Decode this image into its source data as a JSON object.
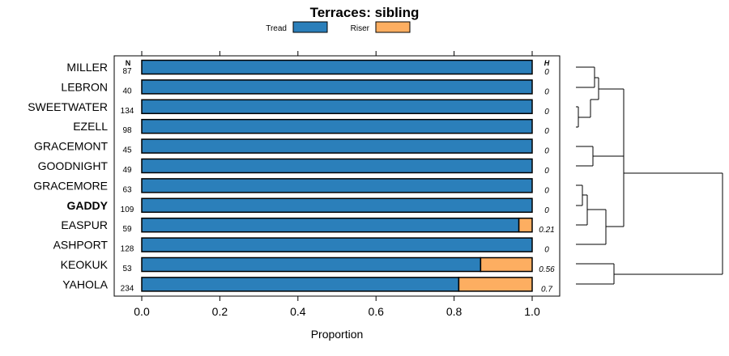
{
  "chart_data": {
    "type": "bar",
    "stacked": true,
    "title": "Terraces: sibling",
    "xlabel": "Proportion",
    "xlim": [
      0,
      1
    ],
    "x_ticks": [
      "0.0",
      "0.2",
      "0.4",
      "0.6",
      "0.8",
      "1.0"
    ],
    "legend_position": "top",
    "n_header": "N",
    "h_header": "H",
    "series": [
      {
        "name": "Tread",
        "color": "#2b7fba"
      },
      {
        "name": "Riser",
        "color": "#fdae61"
      }
    ],
    "rows": [
      {
        "label": "MILLER",
        "n": "87",
        "tread": 1.0,
        "riser": 0.0,
        "h": "0",
        "bold": false
      },
      {
        "label": "LEBRON",
        "n": "40",
        "tread": 1.0,
        "riser": 0.0,
        "h": "0",
        "bold": false
      },
      {
        "label": "SWEETWATER",
        "n": "134",
        "tread": 1.0,
        "riser": 0.0,
        "h": "0",
        "bold": false
      },
      {
        "label": "EZELL",
        "n": "98",
        "tread": 1.0,
        "riser": 0.0,
        "h": "0",
        "bold": false
      },
      {
        "label": "GRACEMONT",
        "n": "45",
        "tread": 1.0,
        "riser": 0.0,
        "h": "0",
        "bold": false
      },
      {
        "label": "GOODNIGHT",
        "n": "49",
        "tread": 1.0,
        "riser": 0.0,
        "h": "0",
        "bold": false
      },
      {
        "label": "GRACEMORE",
        "n": "63",
        "tread": 1.0,
        "riser": 0.0,
        "h": "0",
        "bold": false
      },
      {
        "label": "GADDY",
        "n": "109",
        "tread": 1.0,
        "riser": 0.0,
        "h": "0",
        "bold": true
      },
      {
        "label": "EASPUR",
        "n": "59",
        "tread": 0.966,
        "riser": 0.034,
        "h": "0.21",
        "bold": false
      },
      {
        "label": "ASHPORT",
        "n": "128",
        "tread": 1.0,
        "riser": 0.0,
        "h": "0",
        "bold": false
      },
      {
        "label": "KEOKUK",
        "n": "53",
        "tread": 0.868,
        "riser": 0.132,
        "h": "0.56",
        "bold": false
      },
      {
        "label": "YAHOLA",
        "n": "234",
        "tread": 0.812,
        "riser": 0.188,
        "h": "0.7",
        "bold": false
      }
    ]
  }
}
